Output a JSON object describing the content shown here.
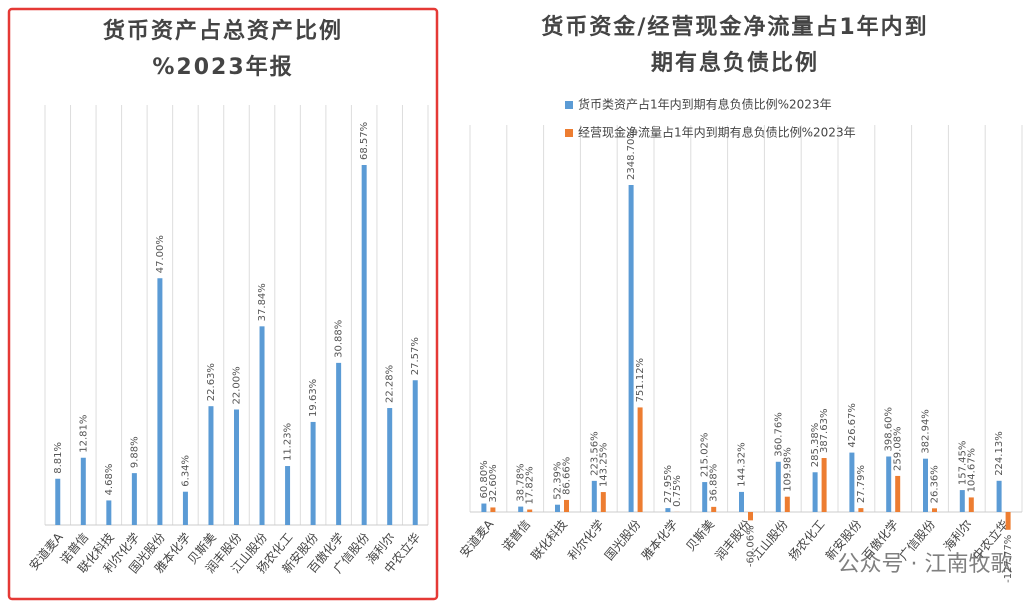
{
  "chart_data": [
    {
      "type": "bar",
      "title": [
        "货币资产占总资产比例",
        "%2023年报"
      ],
      "categories": [
        "安道麦A",
        "诺普信",
        "联化科技",
        "利尔化学",
        "国光股份",
        "雅本化学",
        "贝斯美",
        "润丰股份",
        "江山股份",
        "扬农化工",
        "新安股份",
        "百傲化学",
        "广信股份",
        "海利尔",
        "中农立华"
      ],
      "values": [
        8.81,
        12.81,
        4.68,
        9.88,
        47.0,
        6.34,
        22.63,
        22.0,
        37.84,
        11.23,
        19.63,
        30.88,
        68.57,
        22.28,
        27.57
      ],
      "value_labels": [
        "8.81%",
        "12.81%",
        "4.68%",
        "9.88%",
        "47.00%",
        "6.34%",
        "22.63%",
        "22.00%",
        "37.84%",
        "11.23%",
        "19.63%",
        "30.88%",
        "68.57%",
        "22.28%",
        "27.57%"
      ],
      "color": "#5b9bd5",
      "grid": true
    },
    {
      "type": "bar",
      "title": [
        "货币资金/经营现金净流量占1年内到",
        "期有息负债比例"
      ],
      "categories": [
        "安道麦A",
        "诺普信",
        "联化科技",
        "利尔化学",
        "国光股份",
        "雅本化学",
        "贝斯美",
        "润丰股份",
        "江山股份",
        "扬农化工",
        "新安股份",
        "百傲化学",
        "广信股份",
        "海利尔",
        "中农立华"
      ],
      "series": [
        {
          "name": "货币类资产占1年内到期有息负债比例%2023年",
          "color": "#5b9bd5",
          "values": [
            60.8,
            38.78,
            52.39,
            223.56,
            2348.7,
            27.95,
            215.02,
            144.32,
            360.76,
            285.38,
            426.67,
            398.6,
            382.94,
            157.45,
            224.13
          ],
          "value_labels": [
            "60.80%",
            "38.78%",
            "52.39%",
            "223.56%",
            "2348.70%",
            "27.95%",
            "215.02%",
            "144.32%",
            "360.76%",
            "285.38%",
            "426.67%",
            "398.60%",
            "382.94%",
            "157.45%",
            "224.13%"
          ]
        },
        {
          "name": "经营现金净流量占1年内到期有息负债比例%2023年",
          "color": "#ed7d31",
          "values": [
            32.6,
            17.82,
            86.66,
            143.25,
            751.12,
            0.75,
            36.88,
            -60.06,
            109.98,
            387.63,
            27.79,
            259.08,
            26.36,
            104.67,
            -127.77
          ],
          "value_labels": [
            "32.60%",
            "17.82%",
            "86.66%",
            "143.25%",
            "751.12%",
            "0.75%",
            "36.88%",
            "-60.06%",
            "109.98%",
            "387.63%",
            "27.79%",
            "259.08%",
            "26.36%",
            "104.67%",
            "-127.77%"
          ]
        }
      ],
      "grid": true,
      "watermark": "公众号 · 江南牧歌"
    }
  ]
}
